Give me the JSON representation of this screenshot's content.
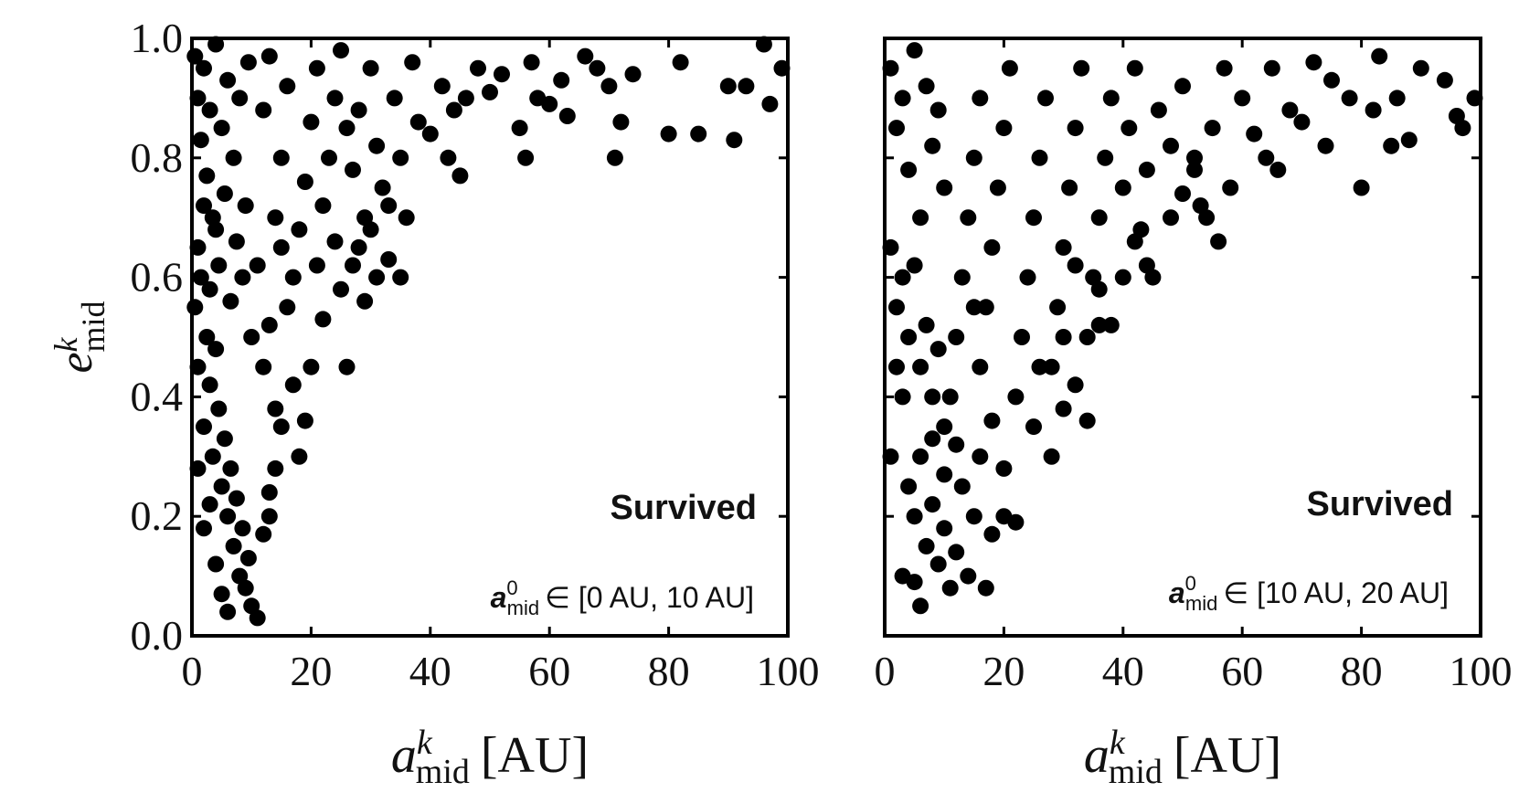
{
  "chart_data": [
    {
      "type": "scatter",
      "xlabel": {
        "main": "a",
        "sup": "k",
        "sub": "mid",
        "unit": "[AU]"
      },
      "ylabel": {
        "main": "e",
        "sup": "k",
        "sub": "mid"
      },
      "xlim": [
        0,
        100
      ],
      "ylim": [
        0,
        1
      ],
      "xticks": [
        "0",
        "20",
        "40",
        "60",
        "80",
        "100"
      ],
      "yticks": [
        "0.0",
        "0.2",
        "0.4",
        "0.6",
        "0.8",
        "1.0"
      ],
      "grid": false,
      "annotation": {
        "status": "Survived",
        "range_main": "a",
        "range_sup": "0",
        "range_sub": "mid",
        "range_text": "∈ [0 AU,  10 AU]"
      },
      "point_color": "#000000",
      "points": [
        [
          0.5,
          0.97
        ],
        [
          1,
          0.9
        ],
        [
          1.5,
          0.83
        ],
        [
          2,
          0.95
        ],
        [
          2.5,
          0.77
        ],
        [
          3,
          0.88
        ],
        [
          3.5,
          0.7
        ],
        [
          4,
          0.99
        ],
        [
          4.5,
          0.62
        ],
        [
          5,
          0.85
        ],
        [
          5.5,
          0.74
        ],
        [
          6,
          0.93
        ],
        [
          6.5,
          0.56
        ],
        [
          7,
          0.8
        ],
        [
          7.5,
          0.66
        ],
        [
          8,
          0.9
        ],
        [
          8.5,
          0.6
        ],
        [
          9,
          0.72
        ],
        [
          9.5,
          0.96
        ],
        [
          10,
          0.5
        ],
        [
          0.5,
          0.55
        ],
        [
          1,
          0.45
        ],
        [
          1.5,
          0.6
        ],
        [
          2,
          0.35
        ],
        [
          2.5,
          0.5
        ],
        [
          3,
          0.42
        ],
        [
          3.5,
          0.3
        ],
        [
          4,
          0.48
        ],
        [
          4.5,
          0.38
        ],
        [
          5,
          0.25
        ],
        [
          5.5,
          0.33
        ],
        [
          6,
          0.2
        ],
        [
          6.5,
          0.28
        ],
        [
          7,
          0.15
        ],
        [
          7.5,
          0.23
        ],
        [
          8,
          0.1
        ],
        [
          8.5,
          0.18
        ],
        [
          9,
          0.08
        ],
        [
          9.5,
          0.13
        ],
        [
          10,
          0.05
        ],
        [
          1,
          0.28
        ],
        [
          2,
          0.18
        ],
        [
          3,
          0.22
        ],
        [
          4,
          0.12
        ],
        [
          5,
          0.07
        ],
        [
          1,
          0.65
        ],
        [
          2,
          0.72
        ],
        [
          3,
          0.58
        ],
        [
          4,
          0.68
        ],
        [
          6,
          0.04
        ],
        [
          11,
          0.03
        ],
        [
          12,
          0.17
        ],
        [
          13,
          0.24
        ],
        [
          14,
          0.38
        ],
        [
          12,
          0.45
        ],
        [
          13,
          0.52
        ],
        [
          11,
          0.62
        ],
        [
          14,
          0.7
        ],
        [
          15,
          0.8
        ],
        [
          12,
          0.88
        ],
        [
          16,
          0.92
        ],
        [
          13,
          0.97
        ],
        [
          15,
          0.65
        ],
        [
          16,
          0.55
        ],
        [
          17,
          0.42
        ],
        [
          18,
          0.3
        ],
        [
          17,
          0.6
        ],
        [
          18,
          0.68
        ],
        [
          19,
          0.76
        ],
        [
          20,
          0.86
        ],
        [
          21,
          0.95
        ],
        [
          22,
          0.72
        ],
        [
          23,
          0.8
        ],
        [
          21,
          0.62
        ],
        [
          22,
          0.53
        ],
        [
          20,
          0.45
        ],
        [
          19,
          0.36
        ],
        [
          24,
          0.9
        ],
        [
          25,
          0.98
        ],
        [
          26,
          0.85
        ],
        [
          24,
          0.66
        ],
        [
          25,
          0.58
        ],
        [
          26,
          0.45
        ],
        [
          27,
          0.78
        ],
        [
          28,
          0.88
        ],
        [
          29,
          0.7
        ],
        [
          30,
          0.95
        ],
        [
          31,
          0.82
        ],
        [
          32,
          0.75
        ],
        [
          33,
          0.63
        ],
        [
          34,
          0.9
        ],
        [
          35,
          0.8
        ],
        [
          36,
          0.7
        ],
        [
          37,
          0.96
        ],
        [
          38,
          0.86
        ],
        [
          40,
          0.84
        ],
        [
          42,
          0.92
        ],
        [
          43,
          0.8
        ],
        [
          44,
          0.88
        ],
        [
          45,
          0.77
        ],
        [
          46,
          0.9
        ],
        [
          48,
          0.95
        ],
        [
          50,
          0.91
        ],
        [
          52,
          0.94
        ],
        [
          55,
          0.85
        ],
        [
          56,
          0.8
        ],
        [
          57,
          0.96
        ],
        [
          58,
          0.9
        ],
        [
          60,
          0.89
        ],
        [
          62,
          0.93
        ],
        [
          63,
          0.87
        ],
        [
          66,
          0.97
        ],
        [
          68,
          0.95
        ],
        [
          70,
          0.92
        ],
        [
          71,
          0.8
        ],
        [
          72,
          0.86
        ],
        [
          74,
          0.94
        ],
        [
          80,
          0.84
        ],
        [
          82,
          0.96
        ],
        [
          85,
          0.84
        ],
        [
          90,
          0.92
        ],
        [
          91,
          0.83
        ],
        [
          93,
          0.92
        ],
        [
          96,
          0.99
        ],
        [
          97,
          0.89
        ],
        [
          99,
          0.95
        ],
        [
          27,
          0.62
        ],
        [
          29,
          0.56
        ],
        [
          31,
          0.6
        ],
        [
          33,
          0.72
        ],
        [
          28,
          0.65
        ],
        [
          30,
          0.68
        ],
        [
          35,
          0.6
        ],
        [
          15,
          0.35
        ],
        [
          14,
          0.28
        ],
        [
          13,
          0.2
        ]
      ]
    },
    {
      "type": "scatter",
      "xlabel": {
        "main": "a",
        "sup": "k",
        "sub": "mid",
        "unit": "[AU]"
      },
      "xlim": [
        0,
        100
      ],
      "ylim": [
        0,
        1
      ],
      "xticks": [
        "0",
        "20",
        "40",
        "60",
        "80",
        "100"
      ],
      "grid": false,
      "annotation": {
        "status": "Survived",
        "range_main": "a",
        "range_sup": "0",
        "range_sub": "mid",
        "range_text": "∈ [10 AU,  20 AU]"
      },
      "point_color": "#000000",
      "points": [
        [
          1,
          0.95
        ],
        [
          2,
          0.85
        ],
        [
          3,
          0.9
        ],
        [
          4,
          0.78
        ],
        [
          5,
          0.98
        ],
        [
          6,
          0.7
        ],
        [
          7,
          0.92
        ],
        [
          8,
          0.82
        ],
        [
          9,
          0.88
        ],
        [
          10,
          0.75
        ],
        [
          1,
          0.65
        ],
        [
          2,
          0.55
        ],
        [
          3,
          0.6
        ],
        [
          4,
          0.5
        ],
        [
          5,
          0.62
        ],
        [
          6,
          0.45
        ],
        [
          7,
          0.52
        ],
        [
          8,
          0.4
        ],
        [
          9,
          0.48
        ],
        [
          10,
          0.35
        ],
        [
          1,
          0.3
        ],
        [
          2,
          0.45
        ],
        [
          3,
          0.4
        ],
        [
          4,
          0.25
        ],
        [
          5,
          0.2
        ],
        [
          6,
          0.3
        ],
        [
          7,
          0.15
        ],
        [
          8,
          0.22
        ],
        [
          9,
          0.12
        ],
        [
          10,
          0.18
        ],
        [
          11,
          0.08
        ],
        [
          12,
          0.14
        ],
        [
          13,
          0.25
        ],
        [
          14,
          0.1
        ],
        [
          15,
          0.2
        ],
        [
          16,
          0.3
        ],
        [
          17,
          0.08
        ],
        [
          18,
          0.17
        ],
        [
          20,
          0.2
        ],
        [
          22,
          0.19
        ],
        [
          6,
          0.05
        ],
        [
          5,
          0.09
        ],
        [
          3,
          0.1
        ],
        [
          11,
          0.4
        ],
        [
          12,
          0.5
        ],
        [
          13,
          0.6
        ],
        [
          14,
          0.7
        ],
        [
          15,
          0.8
        ],
        [
          16,
          0.9
        ],
        [
          17,
          0.55
        ],
        [
          18,
          0.65
        ],
        [
          19,
          0.75
        ],
        [
          20,
          0.85
        ],
        [
          21,
          0.95
        ],
        [
          22,
          0.4
        ],
        [
          23,
          0.5
        ],
        [
          24,
          0.6
        ],
        [
          25,
          0.7
        ],
        [
          26,
          0.8
        ],
        [
          27,
          0.9
        ],
        [
          28,
          0.45
        ],
        [
          29,
          0.55
        ],
        [
          30,
          0.65
        ],
        [
          31,
          0.75
        ],
        [
          32,
          0.85
        ],
        [
          33,
          0.95
        ],
        [
          34,
          0.5
        ],
        [
          35,
          0.6
        ],
        [
          36,
          0.7
        ],
        [
          37,
          0.8
        ],
        [
          38,
          0.9
        ],
        [
          40,
          0.75
        ],
        [
          41,
          0.85
        ],
        [
          42,
          0.95
        ],
        [
          43,
          0.68
        ],
        [
          44,
          0.78
        ],
        [
          45,
          0.6
        ],
        [
          46,
          0.88
        ],
        [
          48,
          0.82
        ],
        [
          50,
          0.92
        ],
        [
          52,
          0.8
        ],
        [
          53,
          0.72
        ],
        [
          55,
          0.85
        ],
        [
          56,
          0.66
        ],
        [
          57,
          0.95
        ],
        [
          58,
          0.75
        ],
        [
          60,
          0.9
        ],
        [
          62,
          0.84
        ],
        [
          64,
          0.8
        ],
        [
          65,
          0.95
        ],
        [
          66,
          0.78
        ],
        [
          68,
          0.88
        ],
        [
          70,
          0.86
        ],
        [
          72,
          0.96
        ],
        [
          74,
          0.82
        ],
        [
          75,
          0.93
        ],
        [
          78,
          0.9
        ],
        [
          80,
          0.75
        ],
        [
          82,
          0.88
        ],
        [
          83,
          0.97
        ],
        [
          85,
          0.82
        ],
        [
          86,
          0.9
        ],
        [
          88,
          0.83
        ],
        [
          90,
          0.95
        ],
        [
          94,
          0.93
        ],
        [
          96,
          0.87
        ],
        [
          97,
          0.85
        ],
        [
          99,
          0.9
        ],
        [
          25,
          0.35
        ],
        [
          26,
          0.45
        ],
        [
          28,
          0.3
        ],
        [
          30,
          0.38
        ],
        [
          32,
          0.42
        ],
        [
          34,
          0.36
        ],
        [
          20,
          0.28
        ],
        [
          18,
          0.36
        ],
        [
          16,
          0.45
        ],
        [
          15,
          0.55
        ],
        [
          12,
          0.32
        ],
        [
          10,
          0.27
        ],
        [
          8,
          0.33
        ],
        [
          30,
          0.5
        ],
        [
          32,
          0.62
        ],
        [
          36,
          0.58
        ],
        [
          38,
          0.52
        ],
        [
          40,
          0.6
        ],
        [
          42,
          0.66
        ],
        [
          44,
          0.62
        ],
        [
          48,
          0.7
        ],
        [
          50,
          0.74
        ],
        [
          52,
          0.78
        ],
        [
          54,
          0.7
        ],
        [
          36,
          0.52
        ]
      ]
    }
  ]
}
